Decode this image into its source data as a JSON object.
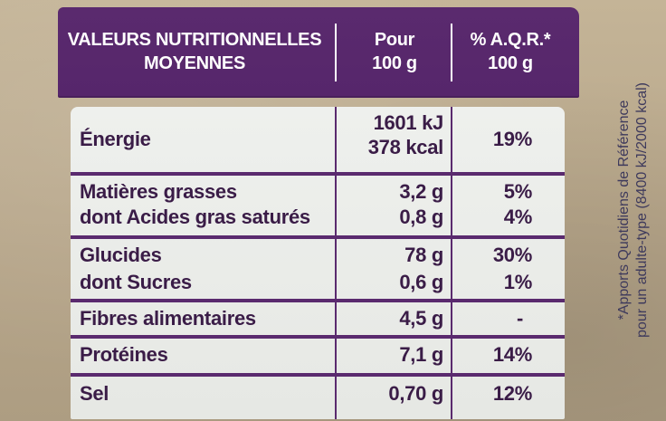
{
  "header": {
    "col_name_line1": "VALEURS NUTRITIONNELLES",
    "col_name_line2": "MOYENNES",
    "col_per_line1": "Pour",
    "col_per_line2": "100 g",
    "col_aqr_line1": "% A.Q.R.*",
    "col_aqr_line2": "100 g"
  },
  "rows": [
    {
      "name": "Énergie",
      "value_kj": "1601 kJ",
      "value_kcal": "378 kcal",
      "aqr": "19%"
    },
    {
      "name": "Matières grasses",
      "value": "3,2 g",
      "aqr": "5%"
    },
    {
      "name": "dont Acides gras saturés",
      "value": "0,8 g",
      "aqr": "4%"
    },
    {
      "name": "Glucides",
      "value": "78 g",
      "aqr": "30%"
    },
    {
      "name": "dont Sucres",
      "value": "0,6 g",
      "aqr": "1%"
    },
    {
      "name": "Fibres alimentaires",
      "value": "4,5 g",
      "aqr": "-"
    },
    {
      "name": "Protéines",
      "value": "7,1 g",
      "aqr": "14%"
    },
    {
      "name": "Sel",
      "value": "0,70 g",
      "aqr": "12%"
    }
  ],
  "footnote": {
    "line1": "*Apports Quotidiens de Référence",
    "line2": "pour un adulte-type (8400 kJ/2000 kcal)"
  },
  "colors": {
    "purple": "#5a2a6e",
    "table_bg": "#eef0ed",
    "cardboard": "#b9a98e"
  }
}
